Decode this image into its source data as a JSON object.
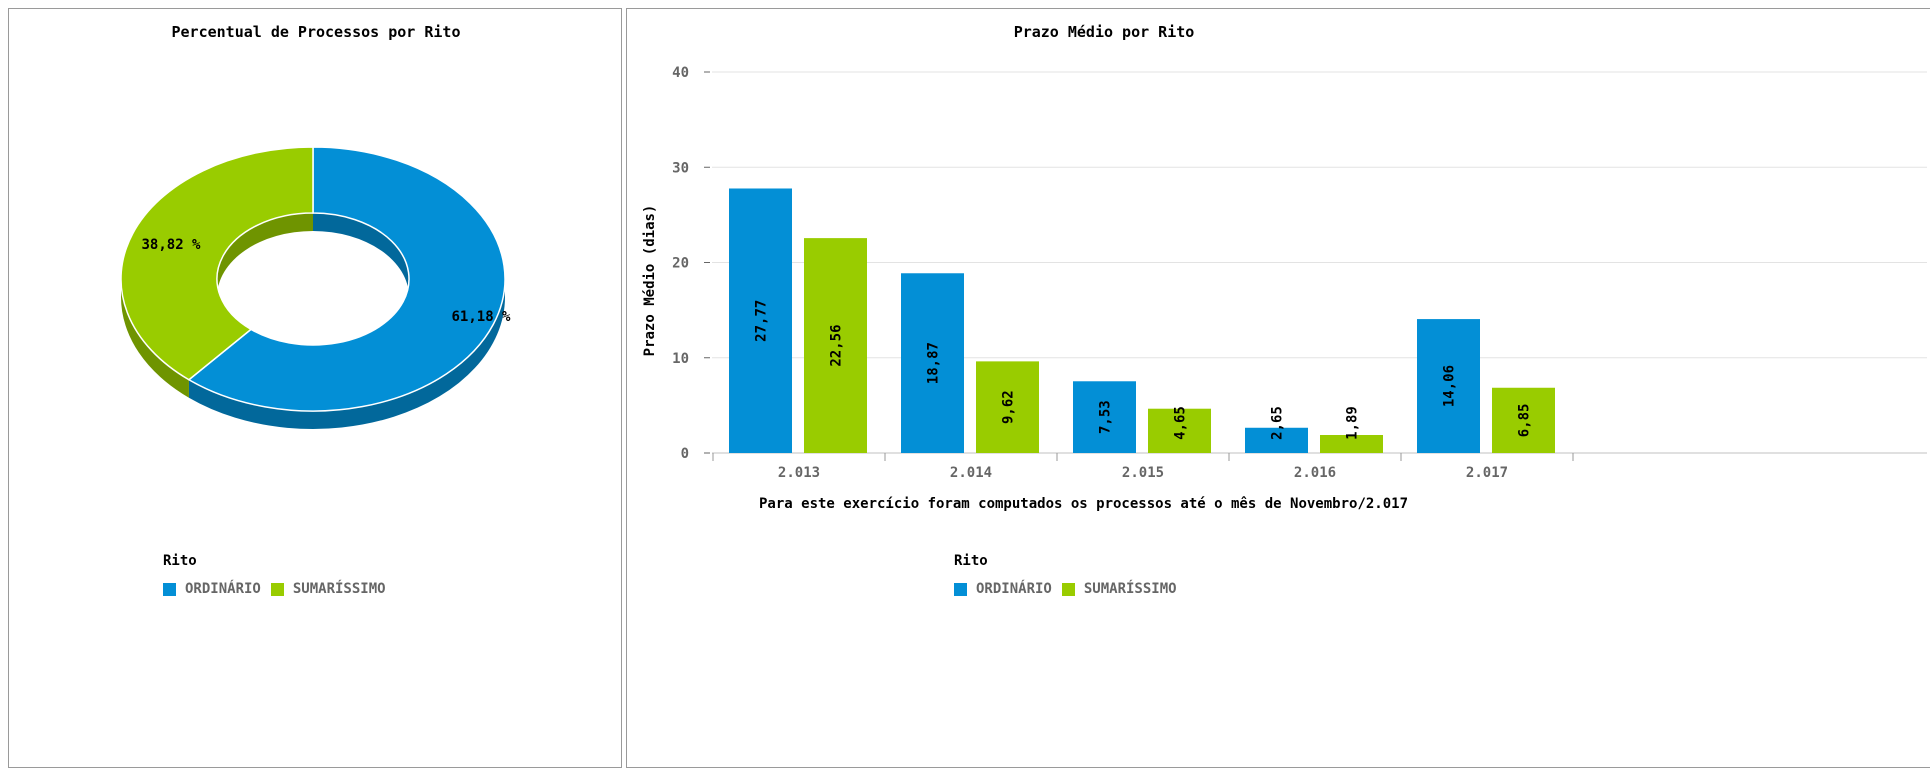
{
  "colors": {
    "ordinario": "#038fd6",
    "sumarissimo": "#99cc00",
    "ordinario_side": "#02689b",
    "sumarissimo_side": "#6f9400"
  },
  "legend": {
    "title": "Rito",
    "items": [
      {
        "label": "ORDINÁRIO",
        "color": "#038fd6"
      },
      {
        "label": "SUMARÍSSIMO",
        "color": "#99cc00"
      }
    ]
  },
  "chart_data": [
    {
      "type": "pie",
      "title": "Percentual de Processos por Rito",
      "donut": true,
      "slices": [
        {
          "name": "ORDINÁRIO",
          "value": 61.18,
          "label": "61,18 %"
        },
        {
          "name": "SUMARÍSSIMO",
          "value": 38.82,
          "label": "38,82 %"
        }
      ]
    },
    {
      "type": "bar",
      "title": "Prazo Médio por Rito",
      "xlabel": "Para este exercício foram computados os processos até o mês de Novembro/2.017",
      "ylabel": "Prazo Médio (dias)",
      "ylim": [
        0,
        40
      ],
      "yticks": [
        "0",
        "10",
        "20",
        "30",
        "40"
      ],
      "categories": [
        "2.013",
        "2.014",
        "2.015",
        "2.016",
        "2.017"
      ],
      "series": [
        {
          "name": "ORDINÁRIO",
          "values": [
            27.77,
            18.87,
            7.53,
            2.65,
            14.06
          ],
          "labels": [
            "27,77",
            "18,87",
            "7,53",
            "2,65",
            "14,06"
          ]
        },
        {
          "name": "SUMARÍSSIMO",
          "values": [
            22.56,
            9.62,
            4.65,
            1.89,
            6.85
          ],
          "labels": [
            "22,56",
            "9,62",
            "4,65",
            "1,89",
            "6,85"
          ]
        }
      ],
      "grid": true
    }
  ]
}
